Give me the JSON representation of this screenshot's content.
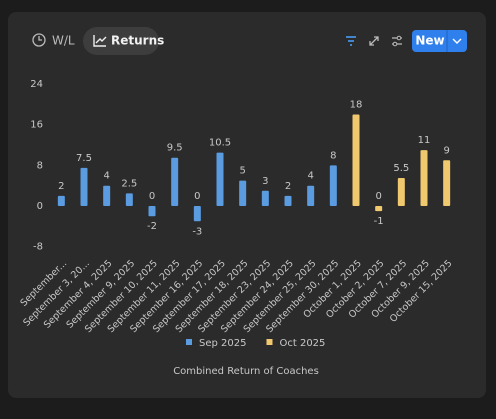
{
  "toolbar": {
    "tabs": [
      "W/L",
      "Returns"
    ],
    "new_button": "New"
  },
  "chart_data": {
    "type": "bar",
    "title": "Combined Return of Coaches",
    "categories": [
      "September...",
      "September 3, 20...",
      "September 4, 2025",
      "September 9, 2025",
      "September 10, 2025",
      "September 11, 2025",
      "September 16, 2025",
      "September 17, 2025",
      "September 18, 2025",
      "September 23, 2025",
      "September 24, 2025",
      "September 25, 2025",
      "September 30, 2025",
      "October 1, 2025",
      "October 2, 2025",
      "October 7, 2025",
      "October 9, 2025",
      "October 15, 2025"
    ],
    "series": [
      {
        "name": "Sep 2025",
        "color": "#5b9be0",
        "values": [
          2,
          7.5,
          4,
          2.5,
          -2,
          9.5,
          -3,
          10.5,
          5,
          3,
          2,
          4,
          8,
          null,
          0,
          null,
          null,
          null
        ]
      },
      {
        "name": "Oct 2025",
        "color": "#f0c86e",
        "values": [
          null,
          null,
          null,
          null,
          0,
          null,
          0,
          null,
          null,
          null,
          null,
          null,
          null,
          18,
          -1,
          5.5,
          11,
          9
        ]
      }
    ],
    "ylim": [
      -8,
      24
    ],
    "yticks": [
      -8,
      0,
      8,
      16,
      24
    ],
    "grid": false,
    "legend": "bottom",
    "data_labels": true
  }
}
